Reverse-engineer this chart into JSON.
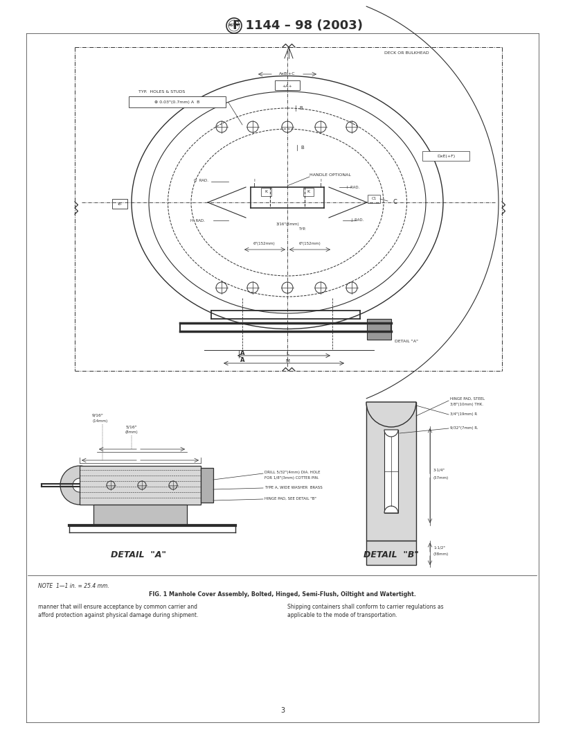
{
  "title": "F 1144 – 98 (2003)",
  "background_color": "#ffffff",
  "line_color": "#2d2d2d",
  "text_color": "#2d2d2d",
  "page_width": 8.16,
  "page_height": 10.56,
  "page_number": "3",
  "note_text": "NOTE  1—1 in. = 25.4 mm.",
  "fig_caption": "FIG. 1 Manhole Cover Assembly, Bolted, Hinged, Semi-Flush, Oiltight and Watertight.",
  "body_text_left": "manner that will ensure acceptance by common carrier and\nafford protection against physical damage during shipment.",
  "body_text_right": "Shipping containers shall conform to carrier regulations as\napplicable to the mode of transportation."
}
